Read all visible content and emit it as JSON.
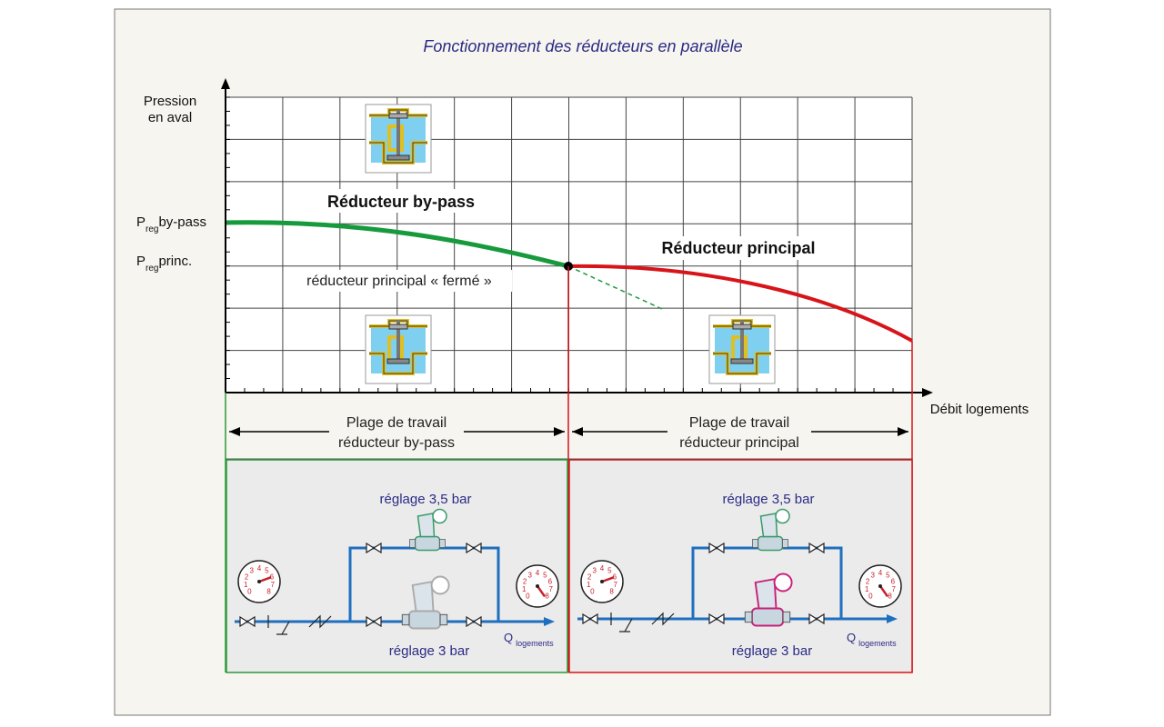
{
  "title": "Fonctionnement des réducteurs en parallèle",
  "y_axis_label": [
    "Pression",
    "en aval"
  ],
  "x_axis_label": "Débit logements",
  "levels": [
    {
      "prefix": "P",
      "subscript": "reg",
      "suffix": "by-pass"
    },
    {
      "prefix": "P",
      "subscript": "reg",
      "suffix": "princ."
    }
  ],
  "curve_labels": [
    "Réducteur by-pass",
    "Réducteur principal"
  ],
  "closed_note": "réducteur principal « fermé »",
  "ranges": [
    {
      "lines": [
        "Plage de travail",
        "réducteur by-pass"
      ]
    },
    {
      "lines": [
        "Plage de travail",
        "réducteur principal"
      ]
    }
  ],
  "panels": [
    {
      "top_setting": "réglage 3,5 bar",
      "bottom_setting": "réglage 3 bar",
      "flow": {
        "symbol": "Q",
        "subscript": "logements"
      }
    },
    {
      "top_setting": "réglage 3,5 bar",
      "bottom_setting": "réglage 3 bar",
      "flow": {
        "symbol": "Q",
        "subscript": "logements"
      }
    }
  ],
  "gauge_digits": [
    "0",
    "1",
    "2",
    "3",
    "4",
    "5",
    "6",
    "7",
    "8"
  ]
}
